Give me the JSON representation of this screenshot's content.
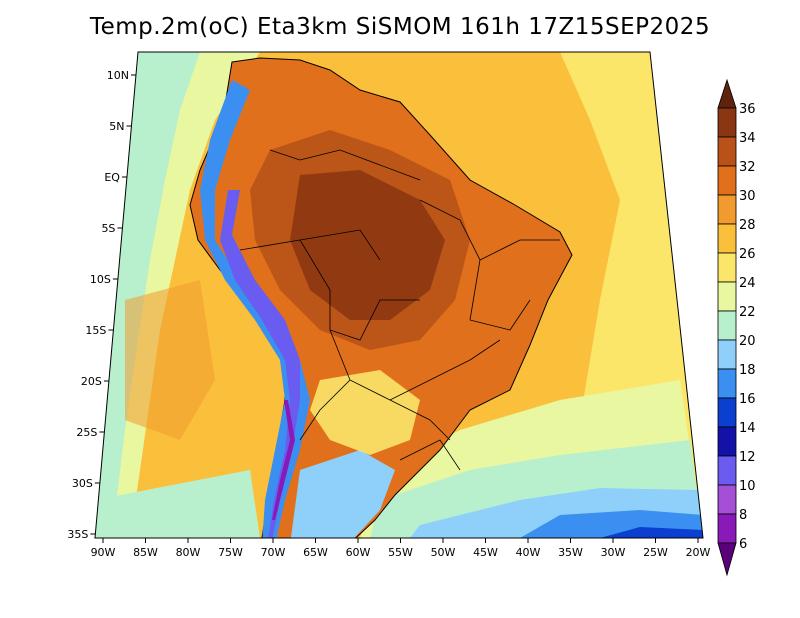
{
  "title": "Temp.2m(oC) Eta3km SiSMOM 161h 17Z15SEP2025",
  "map": {
    "variable": "2 m air temperature",
    "units": "oC",
    "region": "South America",
    "latitude_labels": [
      "10N",
      "5N",
      "EQ",
      "5S",
      "10S",
      "15S",
      "20S",
      "25S",
      "30S",
      "35S"
    ],
    "longitude_labels": [
      "90W",
      "85W",
      "80W",
      "75W",
      "70W",
      "65W",
      "60W",
      "55W",
      "50W",
      "45W",
      "40W",
      "35W",
      "30W",
      "25W",
      "20W"
    ]
  },
  "colorbar": {
    "labels": [
      "36",
      "34",
      "32",
      "30",
      "28",
      "26",
      "24",
      "22",
      "20",
      "18",
      "16",
      "14",
      "12",
      "10",
      "8",
      "6"
    ],
    "bins": [
      {
        "range": "<6",
        "color": "#5a007a"
      },
      {
        "range": "6-8",
        "color": "#8a1ab8"
      },
      {
        "range": "8-10",
        "color": "#a44fd6"
      },
      {
        "range": "10-12",
        "color": "#6a5cf0"
      },
      {
        "range": "12-14",
        "color": "#1212a8"
      },
      {
        "range": "14-16",
        "color": "#0a3fd0"
      },
      {
        "range": "16-18",
        "color": "#3a8ff0"
      },
      {
        "range": "18-20",
        "color": "#8fd0fa"
      },
      {
        "range": "20-22",
        "color": "#b8f0ce"
      },
      {
        "range": "22-24",
        "color": "#e8f7a0"
      },
      {
        "range": "24-26",
        "color": "#fbe66a"
      },
      {
        "range": "26-28",
        "color": "#fac03c"
      },
      {
        "range": "28-30",
        "color": "#f19a2e"
      },
      {
        "range": "30-32",
        "color": "#e0701c"
      },
      {
        "range": "32-34",
        "color": "#b85218"
      },
      {
        "range": "34-36",
        "color": "#8a3612"
      },
      {
        "range": ">36",
        "color": "#5e230c"
      }
    ]
  }
}
